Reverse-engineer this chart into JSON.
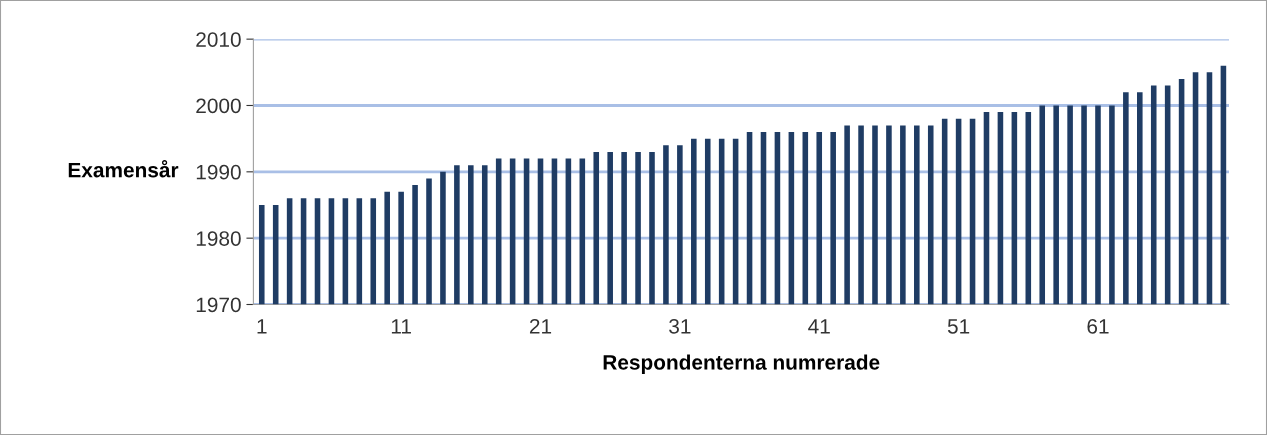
{
  "chart_data": {
    "type": "bar",
    "xlabel": "Respondenterna numrerade",
    "ylabel": "Examensår",
    "categories": [
      "1",
      null,
      null,
      null,
      null,
      null,
      null,
      null,
      null,
      null,
      "11",
      null,
      null,
      null,
      null,
      null,
      null,
      null,
      null,
      null,
      "21",
      null,
      null,
      null,
      null,
      null,
      null,
      null,
      null,
      null,
      "31",
      null,
      null,
      null,
      null,
      null,
      null,
      null,
      null,
      null,
      "41",
      null,
      null,
      null,
      null,
      null,
      null,
      null,
      null,
      null,
      "51",
      null,
      null,
      null,
      null,
      null,
      null,
      null,
      null,
      null,
      "61",
      null,
      null,
      null,
      null,
      null,
      null,
      null,
      null,
      null
    ],
    "values": [
      1985,
      1985,
      1986,
      1986,
      1986,
      1986,
      1986,
      1986,
      1986,
      1987,
      1987,
      1988,
      1989,
      1990,
      1991,
      1991,
      1991,
      1992,
      1992,
      1992,
      1992,
      1992,
      1992,
      1992,
      1993,
      1993,
      1993,
      1993,
      1993,
      1994,
      1994,
      1995,
      1995,
      1995,
      1995,
      1996,
      1996,
      1996,
      1996,
      1996,
      1996,
      1996,
      1997,
      1997,
      1997,
      1997,
      1997,
      1997,
      1997,
      1998,
      1998,
      1998,
      1999,
      1999,
      1999,
      1999,
      2000,
      2000,
      2000,
      2000,
      2000,
      2000,
      2002,
      2002,
      2003,
      2003,
      2004,
      2005,
      2005,
      2006
    ],
    "color": "#1f3c64",
    "ylim": [
      1970,
      2010
    ],
    "yticks": [
      1970,
      1980,
      1990,
      2000,
      2010
    ],
    "grid": "y"
  }
}
